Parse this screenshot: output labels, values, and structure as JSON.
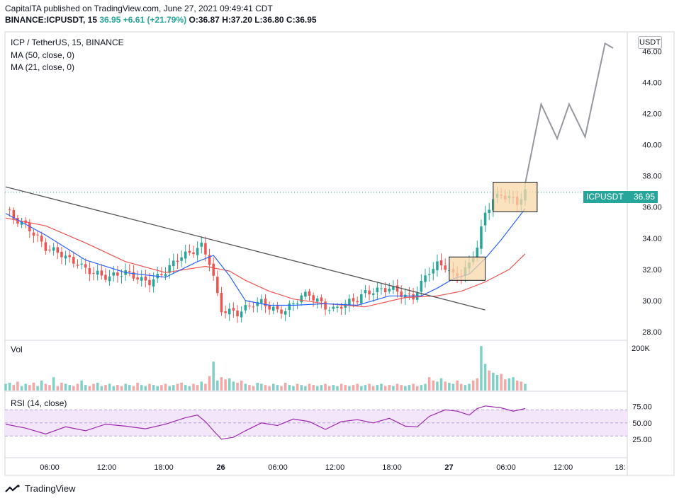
{
  "header": {
    "line1": "CapitalTA published on TradingView.com, June 27, 2021 09:49:41 CDT",
    "line2_symbol": "BINANCE:ICPUSDT, 15",
    "line2_last": "36.95",
    "line2_change": "+6.61 (+21.79%)",
    "line2_ohlc": "O:36.87 H:37.20 L:36.80 C:36.95"
  },
  "legend": {
    "title": "ICP / TetherUS, 15, BINANCE",
    "ma50": "MA (50, close, 0)",
    "ma21": "MA (21, close, 0)",
    "vol": "Vol",
    "rsi": "RSI (14, close)"
  },
  "currency_button": "USDT",
  "last_price_badge": {
    "label": "ICPUSDT",
    "value": "36.95"
  },
  "footer": {
    "brand": "TradingView"
  },
  "colors": {
    "up": "#26a69a",
    "down": "#ef5350",
    "ma21": "#2962ff",
    "ma50": "#ef5350",
    "trendline": "#555555",
    "rsi_line": "#9c27b0",
    "rsi_band": "#f3e6fb",
    "box_fill": "#f8d8a8"
  },
  "chart_data": {
    "type": "candlestick",
    "title": "ICP / TetherUS, 15, BINANCE",
    "price_axis_ticks": [
      "28.00",
      "30.00",
      "32.00",
      "34.00",
      "36.00",
      "38.00",
      "40.00",
      "42.00",
      "44.00",
      "46.00"
    ],
    "time_axis_ticks": [
      "06:00",
      "12:00",
      "18:00",
      "26",
      "06:00",
      "12:00",
      "18:00",
      "27",
      "06:00",
      "12:00",
      "18:"
    ],
    "volume_axis_ticks": [
      "200K"
    ],
    "rsi_axis_ticks": [
      "75.00",
      "50.00",
      "25.00"
    ],
    "ylim": [
      27.5,
      47.2
    ],
    "close_series": [
      [
        0,
        35.9
      ],
      [
        2,
        35.3
      ],
      [
        4,
        35.0
      ],
      [
        6,
        34.6
      ],
      [
        8,
        34.0
      ],
      [
        10,
        33.4
      ],
      [
        12,
        33.2
      ],
      [
        14,
        33.0
      ],
      [
        16,
        32.6
      ],
      [
        18,
        32.4
      ],
      [
        20,
        32.0
      ],
      [
        22,
        31.8
      ],
      [
        24,
        31.6
      ],
      [
        26,
        31.5
      ],
      [
        28,
        31.7
      ],
      [
        30,
        31.8
      ],
      [
        32,
        31.6
      ],
      [
        34,
        31.3
      ],
      [
        36,
        31.2
      ],
      [
        38,
        31.5
      ],
      [
        40,
        31.9
      ],
      [
        42,
        32.4
      ],
      [
        44,
        32.9
      ],
      [
        46,
        33.0
      ],
      [
        48,
        33.4
      ],
      [
        49,
        33.5
      ],
      [
        50,
        33.0
      ],
      [
        51,
        32.5
      ],
      [
        52,
        31.5
      ],
      [
        53,
        30.3
      ],
      [
        54,
        29.4
      ],
      [
        56,
        29.3
      ],
      [
        58,
        29.2
      ],
      [
        60,
        29.5
      ],
      [
        62,
        29.8
      ],
      [
        64,
        29.9
      ],
      [
        66,
        29.6
      ],
      [
        68,
        29.3
      ],
      [
        70,
        29.4
      ],
      [
        72,
        29.8
      ],
      [
        74,
        30.3
      ],
      [
        76,
        30.4
      ],
      [
        78,
        30.0
      ],
      [
        80,
        29.6
      ],
      [
        82,
        29.4
      ],
      [
        84,
        29.7
      ],
      [
        86,
        29.9
      ],
      [
        88,
        30.1
      ],
      [
        90,
        30.5
      ],
      [
        92,
        30.6
      ],
      [
        94,
        30.7
      ],
      [
        96,
        30.8
      ],
      [
        98,
        30.6
      ],
      [
        100,
        30.3
      ],
      [
        102,
        30.2
      ],
      [
        104,
        31.1
      ],
      [
        106,
        31.9
      ],
      [
        108,
        32.3
      ],
      [
        110,
        32.2
      ],
      [
        112,
        31.6
      ],
      [
        114,
        31.7
      ],
      [
        116,
        32.3
      ],
      [
        118,
        33.5
      ],
      [
        120,
        35.6
      ],
      [
        122,
        36.5
      ],
      [
        124,
        36.8
      ],
      [
        126,
        36.6
      ],
      [
        128,
        36.3
      ],
      [
        130,
        36.95
      ]
    ],
    "ma21": [
      [
        0,
        35.6
      ],
      [
        10,
        34.2
      ],
      [
        20,
        32.6
      ],
      [
        30,
        31.8
      ],
      [
        40,
        31.5
      ],
      [
        48,
        32.5
      ],
      [
        52,
        32.9
      ],
      [
        56,
        31.6
      ],
      [
        60,
        30.0
      ],
      [
        66,
        29.7
      ],
      [
        72,
        29.7
      ],
      [
        80,
        29.8
      ],
      [
        88,
        29.7
      ],
      [
        96,
        30.3
      ],
      [
        104,
        30.3
      ],
      [
        108,
        30.8
      ],
      [
        112,
        31.4
      ],
      [
        116,
        31.7
      ],
      [
        120,
        32.7
      ],
      [
        124,
        33.9
      ],
      [
        130,
        35.9
      ]
    ],
    "ma50": [
      [
        0,
        35.3
      ],
      [
        10,
        34.8
      ],
      [
        20,
        33.7
      ],
      [
        30,
        32.5
      ],
      [
        40,
        31.8
      ],
      [
        50,
        32.2
      ],
      [
        56,
        31.9
      ],
      [
        60,
        31.3
      ],
      [
        66,
        30.6
      ],
      [
        72,
        30.1
      ],
      [
        80,
        29.8
      ],
      [
        90,
        29.6
      ],
      [
        100,
        30.2
      ],
      [
        108,
        30.3
      ],
      [
        114,
        30.6
      ],
      [
        120,
        31.2
      ],
      [
        126,
        32.0
      ],
      [
        130,
        33.0
      ]
    ],
    "trendline": [
      [
        0,
        37.3
      ],
      [
        120,
        29.4
      ]
    ],
    "projection": [
      [
        130,
        37.5
      ],
      [
        134,
        42.6
      ],
      [
        138,
        40.4
      ],
      [
        141,
        42.6
      ],
      [
        145,
        40.5
      ],
      [
        150,
        46.5
      ],
      [
        152,
        46.2
      ]
    ],
    "boxes": [
      {
        "x0": 111,
        "x1": 120,
        "y0": 31.3,
        "y1": 32.8
      },
      {
        "x0": 122,
        "x1": 133,
        "y0": 35.7,
        "y1": 37.6
      }
    ],
    "volume": [
      30,
      35,
      25,
      40,
      20,
      30,
      25,
      35,
      20,
      45,
      30,
      25,
      60,
      20,
      35,
      30,
      25,
      20,
      30,
      45,
      25,
      20,
      30,
      35,
      20,
      25,
      30,
      20,
      25,
      20,
      30,
      25,
      20,
      35,
      25,
      20,
      30,
      25,
      20,
      25,
      30,
      20,
      25,
      30,
      35,
      25,
      20,
      30,
      25,
      40,
      30,
      65,
      130,
      45,
      60,
      50,
      55,
      40,
      35,
      45,
      30,
      25,
      20,
      35,
      30,
      25,
      20,
      30,
      25,
      20,
      35,
      25,
      20,
      30,
      25,
      20,
      30,
      25,
      20,
      25,
      30,
      20,
      25,
      20,
      30,
      25,
      20,
      25,
      30,
      20,
      25,
      30,
      20,
      25,
      30,
      20,
      25,
      20,
      30,
      25,
      20,
      25,
      30,
      20,
      25,
      30,
      60,
      45,
      40,
      55,
      40,
      35,
      30,
      45,
      30,
      25,
      30,
      45,
      55,
      200,
      120,
      90,
      80,
      70,
      75,
      50,
      55,
      60,
      45,
      40,
      30
    ],
    "rsi": [
      [
        0,
        48
      ],
      [
        5,
        42
      ],
      [
        10,
        33
      ],
      [
        15,
        44
      ],
      [
        20,
        38
      ],
      [
        25,
        48
      ],
      [
        30,
        45
      ],
      [
        35,
        41
      ],
      [
        40,
        48
      ],
      [
        45,
        58
      ],
      [
        48,
        62
      ],
      [
        50,
        52
      ],
      [
        52,
        38
      ],
      [
        54,
        25
      ],
      [
        57,
        28
      ],
      [
        60,
        38
      ],
      [
        64,
        50
      ],
      [
        68,
        46
      ],
      [
        72,
        56
      ],
      [
        76,
        52
      ],
      [
        80,
        40
      ],
      [
        84,
        52
      ],
      [
        88,
        55
      ],
      [
        92,
        50
      ],
      [
        96,
        57
      ],
      [
        100,
        45
      ],
      [
        103,
        44
      ],
      [
        106,
        60
      ],
      [
        110,
        70
      ],
      [
        113,
        68
      ],
      [
        116,
        62
      ],
      [
        118,
        72
      ],
      [
        120,
        76
      ],
      [
        124,
        73
      ],
      [
        127,
        68
      ],
      [
        130,
        72
      ]
    ],
    "rsi_levels": [
      30,
      50,
      70
    ]
  }
}
